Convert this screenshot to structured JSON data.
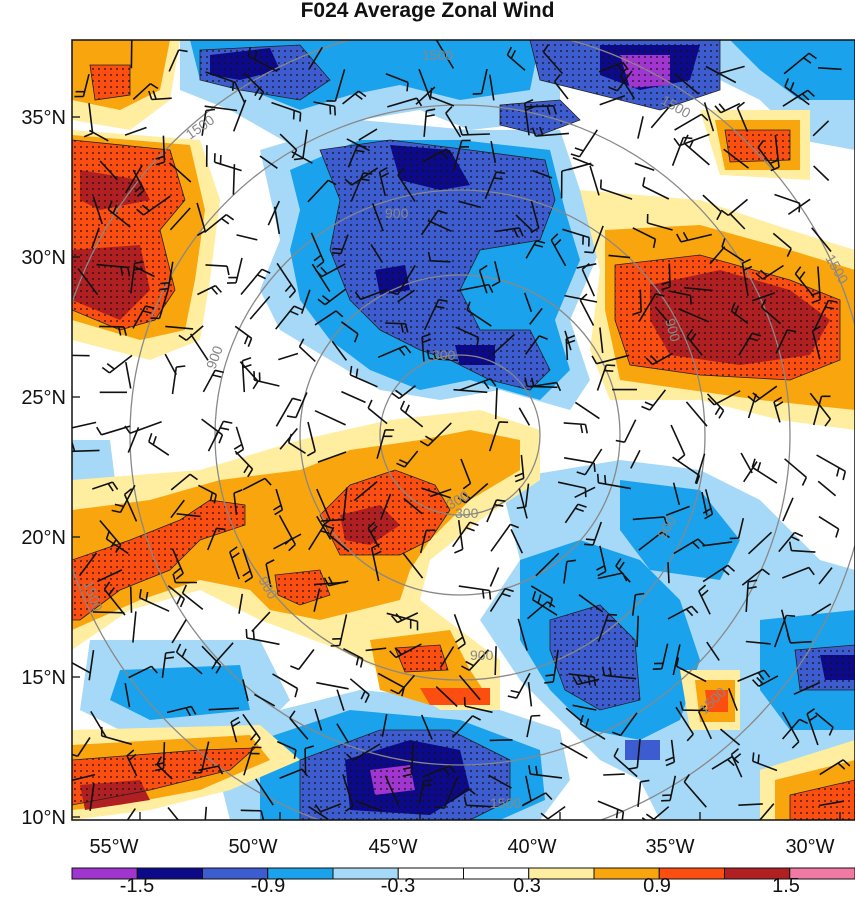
{
  "title": "F024 Average Zonal Wind",
  "x_ticks": [
    "55°W",
    "50°W",
    "45°W",
    "40°W",
    "35°W",
    "30°W"
  ],
  "y_ticks": [
    "35°N",
    "30°N",
    "25°N",
    "20°N",
    "15°N",
    "10°N"
  ],
  "colorbar": {
    "labels": [
      "-1.5",
      "-0.9",
      "-0.3",
      "0.3",
      "0.9",
      "1.5"
    ],
    "colors": [
      "#a035d0",
      "#0d0a8a",
      "#3d5ccf",
      "#1aa3ec",
      "#a6d9f7",
      "#ffffff",
      "#ffffff",
      "#ffeea0",
      "#f9a50e",
      "#fb4e10",
      "#b01f22",
      "#f07aa4"
    ]
  },
  "contour_labels": [
    "1500",
    "1500",
    "1500",
    "1500",
    "1500",
    "900",
    "900",
    "900",
    "900",
    "900",
    "900",
    "300",
    "300",
    "300",
    "1500",
    "1500"
  ],
  "palette": {
    "dark_blue": "#0d0a8a",
    "medium_blue": "#3d5ccf",
    "light_blue": "#1aa3ec",
    "pale_blue": "#a6d9f7",
    "pale_yellow": "#ffeea0",
    "orange": "#f9a50e",
    "red_orange": "#fb4e10",
    "dark_red": "#b01f22",
    "purple": "#a035d0"
  }
}
